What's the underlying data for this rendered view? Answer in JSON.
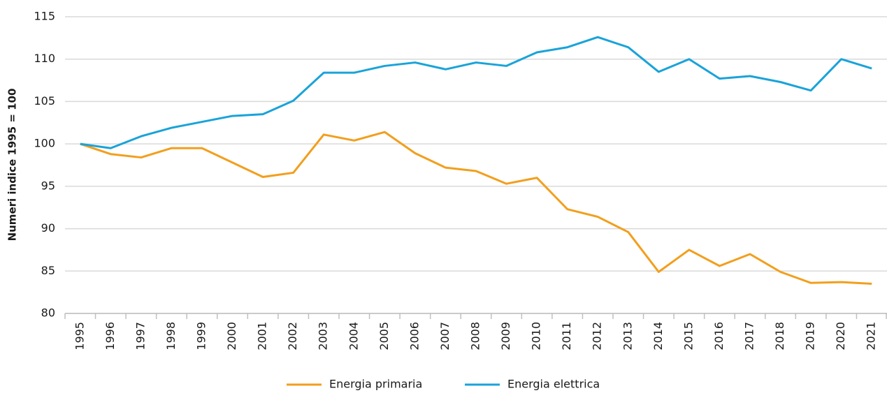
{
  "chart_data": {
    "type": "line",
    "y_label": "Numeri indice 1995 = 100",
    "categories": [
      "1995",
      "1996",
      "1997",
      "1998",
      "1999",
      "2000",
      "2001",
      "2002",
      "2003",
      "2004",
      "2005",
      "2006",
      "2007",
      "2008",
      "2009",
      "2010",
      "2011",
      "2012",
      "2013",
      "2014",
      "2015",
      "2016",
      "2017",
      "2018",
      "2019",
      "2020",
      "2021"
    ],
    "series": [
      {
        "name": "Energia primaria",
        "color": "#f29f1d",
        "values": [
          100,
          98.8,
          98.4,
          99.5,
          99.5,
          97.8,
          96.1,
          96.6,
          101.1,
          100.4,
          101.4,
          98.9,
          97.2,
          96.8,
          95.3,
          96.0,
          92.3,
          91.4,
          89.6,
          84.9,
          87.5,
          85.6,
          87.0,
          84.9,
          83.6,
          83.7,
          83.5
        ]
      },
      {
        "name": "Energia elettrica",
        "color": "#1aa3d9",
        "values": [
          100,
          99.5,
          100.9,
          101.9,
          102.6,
          103.3,
          103.5,
          105.1,
          108.4,
          108.4,
          109.2,
          109.6,
          108.8,
          109.6,
          109.2,
          110.8,
          111.4,
          112.6,
          111.4,
          108.5,
          110.0,
          107.7,
          108.0,
          107.3,
          106.3,
          110.0,
          108.9
        ]
      }
    ],
    "ylim": [
      80,
      115
    ],
    "yticks": [
      80,
      85,
      90,
      95,
      100,
      105,
      110,
      115
    ],
    "grid": true
  }
}
